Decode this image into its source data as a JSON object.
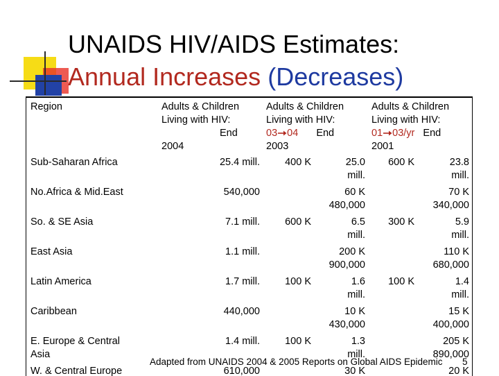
{
  "title": {
    "line1": "UNAIDS HIV/AIDS Estimates:",
    "line2_red": "Annual Increases",
    "line2_blue": "(Decreases)"
  },
  "table": {
    "header": {
      "region": "Region",
      "col1": [
        "Adults & Children",
        "Living with HIV:",
        "End",
        "2004"
      ],
      "col2": [
        "Adults & Children",
        "Living with HIV:"
      ],
      "col2_red_from": "03",
      "col2_red_to": "04",
      "col2_end": "End",
      "col2_year": "2003",
      "col3": [
        "Adults & Children",
        "Living with HIV:"
      ],
      "col3_red_from": "01",
      "col3_red_to": "03/yr",
      "col3_end": "End",
      "col3_year": "2001"
    },
    "rows": [
      {
        "region": [
          "Sub-Saharan Africa"
        ],
        "end2004": "25.4 mill.",
        "inc1": "400 K",
        "end2003": [
          "25.0",
          "mill."
        ],
        "inc2": "600 K",
        "end2001": [
          "23.8",
          "mill."
        ]
      },
      {
        "region": [
          "No.Africa & Mid.East"
        ],
        "end2004": "540,000",
        "inc1": "",
        "end2003": [
          "60 K",
          "480,000"
        ],
        "inc2": "",
        "end2001": [
          "70 K",
          "340,000"
        ]
      },
      {
        "region": [
          "So. & SE Asia"
        ],
        "end2004": "7.1 mill.",
        "inc1": "600 K",
        "end2003": [
          "6.5",
          "mill."
        ],
        "inc2": "300 K",
        "end2001": [
          "5.9",
          "mill."
        ]
      },
      {
        "region": [
          "East Asia"
        ],
        "end2004": "1.1 mill.",
        "inc1": "",
        "end2003": [
          "200 K",
          "900,000"
        ],
        "inc2": "",
        "end2001": [
          "110 K",
          "680,000"
        ]
      },
      {
        "region": [
          "Latin America"
        ],
        "end2004": "1.7 mill.",
        "inc1": "100 K",
        "end2003": [
          "1.6",
          "mill."
        ],
        "inc2": "100 K",
        "end2001": [
          "1.4",
          "mill."
        ]
      },
      {
        "region": [
          "Caribbean"
        ],
        "end2004": "440,000",
        "inc1": "",
        "end2003": [
          "10 K",
          "430,000"
        ],
        "inc2": "",
        "end2001": [
          "15 K",
          "400,000"
        ]
      },
      {
        "region": [
          "E. Europe & Central",
          "Asia"
        ],
        "end2004": "1.4 mill.",
        "inc1": "100 K",
        "end2003": [
          "1.3",
          "mill."
        ],
        "inc2": "",
        "end2001": [
          "205 K",
          "890,000"
        ]
      },
      {
        "region": [
          "W. & Central Europe"
        ],
        "end2004": "610,000",
        "inc1": "",
        "end2003": [
          "30 K",
          ""
        ],
        "inc2": "",
        "end2001": [
          "20 K",
          ""
        ]
      }
    ]
  },
  "footer": {
    "source": "Adapted from UNAIDS 2004 & 2005 Reports on Global AIDS Epidemic",
    "page": "5"
  },
  "colors": {
    "accent_red": "#b2291f",
    "accent_blue": "#1e3aa0",
    "deco_yellow": "#f6dc16",
    "deco_red": "#e83228",
    "deco_blue": "#2242a6"
  },
  "icons": [
    "arrow-right-icon"
  ]
}
